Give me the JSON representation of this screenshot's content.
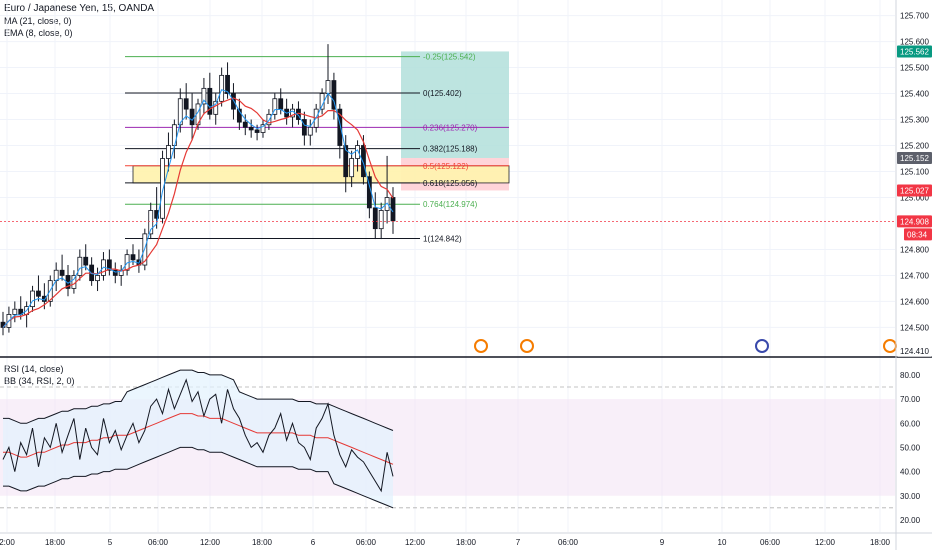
{
  "chart_data": [
    {
      "type": "candlestick",
      "title": "Euro / Japanese Yen, 15, OANDA",
      "indicators": [
        "MA (21, close, 0)",
        "EMA (8, close, 0)"
      ],
      "price_axis": {
        "ylim": [
          124.39,
          125.76
        ],
        "ticks": [
          125.7,
          125.6,
          125.5,
          125.4,
          125.3,
          125.2,
          125.1,
          125.0,
          124.8,
          124.7,
          124.6,
          124.5
        ],
        "tick_labels": [
          "125.700",
          "125.600",
          "125.500",
          "125.400",
          "125.300",
          "125.200",
          "125.100",
          "125.000",
          "124.800",
          "124.700",
          "124.600",
          "124.500"
        ]
      },
      "price_labels": [
        {
          "value": 125.562,
          "text": "125.562",
          "color": "#089981"
        },
        {
          "value": 125.152,
          "text": "125.152",
          "color": "#5d606b"
        },
        {
          "value": 125.027,
          "text": "125.027",
          "color": "#f23645"
        },
        {
          "value": 124.908,
          "text": "124.908",
          "color": "#f23645"
        },
        {
          "value": 124.41,
          "text": "124.410",
          "color": "#131722"
        }
      ],
      "countdown": "08:34",
      "last_price": 124.908,
      "fibonacci": {
        "levels": [
          {
            "ratio": "-0.25",
            "value": 125.542,
            "label": "-0.25(125.542)",
            "color": "#4caf50"
          },
          {
            "ratio": "0",
            "value": 125.402,
            "label": "0(125.402)",
            "color": "#131722"
          },
          {
            "ratio": "0.236",
            "value": 125.27,
            "label": "0.236(125.270)",
            "color": "#9c27b0"
          },
          {
            "ratio": "0.382",
            "value": 125.188,
            "label": "0.382(125.188)",
            "color": "#131722"
          },
          {
            "ratio": "0.5",
            "value": 125.122,
            "label": "0.5(125.122)",
            "color": "#f44336"
          },
          {
            "ratio": "0.618",
            "value": 125.056,
            "label": "0.618(125.056)",
            "color": "#131722"
          },
          {
            "ratio": "0.764",
            "value": 124.974,
            "label": "0.764(124.974)",
            "color": "#4caf50"
          },
          {
            "ratio": "1",
            "value": 124.842,
            "label": "1(124.842)",
            "color": "#131722"
          }
        ]
      },
      "zone": {
        "from": 125.056,
        "to": 125.122,
        "color": "#fff3b0"
      },
      "position_tool": {
        "entry": 125.152,
        "target": 125.562,
        "stop": 125.027,
        "profit_color": "#b2dfdb",
        "loss_color": "#ffcdd2"
      },
      "ohlc": [
        [
          124.52,
          124.56,
          124.47,
          124.5
        ],
        [
          124.5,
          124.58,
          124.48,
          124.55
        ],
        [
          124.55,
          124.6,
          124.52,
          124.57
        ],
        [
          124.57,
          124.62,
          124.53,
          124.55
        ],
        [
          124.55,
          124.6,
          124.5,
          124.58
        ],
        [
          124.58,
          124.66,
          124.56,
          124.64
        ],
        [
          124.64,
          124.7,
          124.6,
          124.62
        ],
        [
          124.62,
          124.67,
          124.57,
          124.6
        ],
        [
          124.6,
          124.7,
          124.58,
          124.68
        ],
        [
          124.68,
          124.75,
          124.64,
          124.72
        ],
        [
          124.72,
          124.78,
          124.68,
          124.7
        ],
        [
          124.7,
          124.74,
          124.62,
          124.65
        ],
        [
          124.65,
          124.72,
          124.63,
          124.7
        ],
        [
          124.7,
          124.8,
          124.68,
          124.77
        ],
        [
          124.77,
          124.82,
          124.72,
          124.74
        ],
        [
          124.74,
          124.77,
          124.66,
          124.68
        ],
        [
          124.68,
          124.73,
          124.64,
          124.7
        ],
        [
          124.7,
          124.79,
          124.68,
          124.76
        ],
        [
          124.76,
          124.8,
          124.7,
          124.72
        ],
        [
          124.72,
          124.75,
          124.67,
          124.7
        ],
        [
          124.7,
          124.74,
          124.66,
          124.72
        ],
        [
          124.72,
          124.8,
          124.7,
          124.78
        ],
        [
          124.78,
          124.82,
          124.74,
          124.76
        ],
        [
          124.76,
          124.8,
          124.71,
          124.74
        ],
        [
          124.74,
          124.88,
          124.72,
          124.86
        ],
        [
          124.86,
          124.98,
          124.84,
          124.95
        ],
        [
          124.95,
          125.04,
          124.88,
          124.92
        ],
        [
          124.92,
          125.18,
          124.9,
          125.15
        ],
        [
          125.15,
          125.25,
          125.1,
          125.2
        ],
        [
          125.2,
          125.3,
          125.15,
          125.28
        ],
        [
          125.28,
          125.42,
          125.25,
          125.38
        ],
        [
          125.38,
          125.44,
          125.3,
          125.34
        ],
        [
          125.34,
          125.4,
          125.22,
          125.28
        ],
        [
          125.28,
          125.38,
          125.26,
          125.36
        ],
        [
          125.36,
          125.46,
          125.32,
          125.42
        ],
        [
          125.42,
          125.48,
          125.3,
          125.32
        ],
        [
          125.32,
          125.4,
          125.28,
          125.37
        ],
        [
          125.37,
          125.5,
          125.35,
          125.47
        ],
        [
          125.47,
          125.52,
          125.38,
          125.4
        ],
        [
          125.4,
          125.44,
          125.3,
          125.34
        ],
        [
          125.34,
          125.38,
          125.26,
          125.29
        ],
        [
          125.29,
          125.32,
          125.24,
          125.27
        ],
        [
          125.27,
          125.3,
          125.23,
          125.26
        ],
        [
          125.26,
          125.28,
          125.22,
          125.25
        ],
        [
          125.25,
          125.3,
          125.23,
          125.28
        ],
        [
          125.28,
          125.34,
          125.26,
          125.32
        ],
        [
          125.32,
          125.4,
          125.3,
          125.38
        ],
        [
          125.38,
          125.42,
          125.32,
          125.34
        ],
        [
          125.34,
          125.38,
          125.28,
          125.31
        ],
        [
          125.31,
          125.36,
          125.27,
          125.34
        ],
        [
          125.34,
          125.37,
          125.28,
          125.3
        ],
        [
          125.3,
          125.33,
          125.2,
          125.24
        ],
        [
          125.24,
          125.3,
          125.2,
          125.27
        ],
        [
          125.27,
          125.36,
          125.25,
          125.34
        ],
        [
          125.34,
          125.42,
          125.32,
          125.4
        ],
        [
          125.4,
          125.59,
          125.36,
          125.45
        ],
        [
          125.45,
          125.48,
          125.3,
          125.34
        ],
        [
          125.34,
          125.36,
          125.15,
          125.2
        ],
        [
          125.2,
          125.24,
          125.02,
          125.08
        ],
        [
          125.08,
          125.18,
          125.04,
          125.15
        ],
        [
          125.15,
          125.22,
          125.1,
          125.2
        ],
        [
          125.2,
          125.24,
          125.05,
          125.08
        ],
        [
          125.08,
          125.1,
          124.92,
          124.96
        ],
        [
          124.96,
          125.02,
          124.84,
          124.88
        ],
        [
          124.88,
          124.98,
          124.84,
          124.95
        ],
        [
          124.95,
          125.16,
          124.9,
          125.0
        ],
        [
          125.0,
          125.04,
          124.86,
          124.91
        ]
      ],
      "x_ticks": [
        "2:00",
        "18:00",
        "5",
        "06:00",
        "12:00",
        "18:00",
        "6",
        "06:00",
        "12:00",
        "18:00",
        "7",
        "06:00",
        "9",
        "10",
        "06:00",
        "12:00",
        "18:00"
      ]
    },
    {
      "type": "line",
      "indicators": [
        "RSI (14, close)",
        "BB (34, RSI, 2, 0)"
      ],
      "ylim": [
        15,
        87
      ],
      "ticks": [
        80,
        70,
        60,
        50,
        40,
        30,
        20
      ],
      "tick_labels": [
        "80.00",
        "70.00",
        "60.00",
        "50.00",
        "40.00",
        "30.00",
        "20.00"
      ],
      "band": [
        30,
        70
      ],
      "dashed_lines": [
        75,
        25
      ],
      "rsi": [
        45,
        50,
        40,
        52,
        47,
        58,
        42,
        54,
        50,
        60,
        48,
        55,
        62,
        45,
        58,
        50,
        47,
        62,
        52,
        57,
        49,
        55,
        60,
        52,
        57,
        67,
        70,
        64,
        74,
        66,
        72,
        78,
        69,
        73,
        63,
        70,
        72,
        60,
        74,
        66,
        62,
        55,
        50,
        52,
        48,
        55,
        58,
        64,
        53,
        60,
        52,
        50,
        45,
        58,
        62,
        68,
        55,
        47,
        42,
        49,
        46,
        44,
        40,
        36,
        32,
        48,
        38
      ],
      "bb_basis": [
        48,
        48,
        47,
        46,
        46,
        47,
        48,
        48,
        49,
        50,
        51,
        51,
        52,
        52,
        52,
        53,
        53,
        54,
        54,
        55,
        55,
        55,
        56,
        57,
        58,
        59,
        60,
        61,
        62,
        63,
        64,
        64,
        64,
        63,
        63,
        62,
        62,
        62,
        61,
        60,
        59,
        58,
        57,
        56,
        56,
        56,
        56,
        56,
        56,
        56,
        55,
        55,
        55,
        54,
        54,
        54,
        53,
        52,
        51,
        50,
        49,
        48,
        47,
        46,
        45,
        44,
        43
      ]
    }
  ]
}
